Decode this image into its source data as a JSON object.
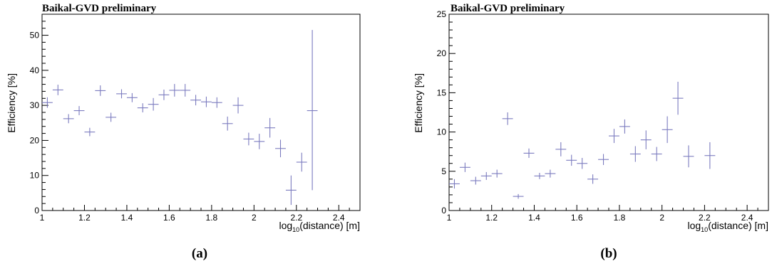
{
  "chart_data": [
    {
      "type": "scatter",
      "panel_label": "(a)",
      "title": "Baikal-GVD preliminary",
      "xlabel_main": "log",
      "xlabel_sub": "10",
      "xlabel_rest": "(distance) [m]",
      "ylabel": "Efficiency [%]",
      "xlim": [
        1.0,
        2.5
      ],
      "ylim": [
        0,
        56
      ],
      "x_ticks": [
        1,
        1.2,
        1.4,
        1.6,
        1.8,
        2,
        2.2,
        2.4
      ],
      "x_tick_labels": [
        "1",
        "1.2",
        "1.4",
        "1.6",
        "1.8",
        "2",
        "2.2",
        "2.4"
      ],
      "y_ticks": [
        0,
        10,
        20,
        30,
        40,
        50
      ],
      "y_tick_labels": [
        "0",
        "10",
        "20",
        "30",
        "40",
        "50"
      ],
      "grid": false,
      "color": "#7b7bbf",
      "x_half_width": 0.025,
      "points": [
        {
          "x": 1.025,
          "y": 30.8,
          "err": 1.5
        },
        {
          "x": 1.075,
          "y": 34.4,
          "err": 1.5
        },
        {
          "x": 1.125,
          "y": 26.2,
          "err": 1.3
        },
        {
          "x": 1.175,
          "y": 28.5,
          "err": 1.3
        },
        {
          "x": 1.225,
          "y": 22.4,
          "err": 1.2
        },
        {
          "x": 1.275,
          "y": 34.2,
          "err": 1.5
        },
        {
          "x": 1.325,
          "y": 26.6,
          "err": 1.3
        },
        {
          "x": 1.375,
          "y": 33.3,
          "err": 1.3
        },
        {
          "x": 1.425,
          "y": 32.2,
          "err": 1.3
        },
        {
          "x": 1.475,
          "y": 29.3,
          "err": 1.3
        },
        {
          "x": 1.525,
          "y": 30.3,
          "err": 1.8
        },
        {
          "x": 1.575,
          "y": 33.0,
          "err": 1.5
        },
        {
          "x": 1.625,
          "y": 34.3,
          "err": 1.8
        },
        {
          "x": 1.675,
          "y": 34.3,
          "err": 1.8
        },
        {
          "x": 1.725,
          "y": 31.5,
          "err": 1.5
        },
        {
          "x": 1.775,
          "y": 31.0,
          "err": 1.5
        },
        {
          "x": 1.825,
          "y": 30.8,
          "err": 1.5
        },
        {
          "x": 1.875,
          "y": 24.8,
          "err": 2.0
        },
        {
          "x": 1.925,
          "y": 30.0,
          "err": 2.3
        },
        {
          "x": 1.975,
          "y": 20.4,
          "err": 1.8
        },
        {
          "x": 2.025,
          "y": 19.7,
          "err": 2.2
        },
        {
          "x": 2.075,
          "y": 23.6,
          "err": 2.8
        },
        {
          "x": 2.125,
          "y": 17.7,
          "err": 2.5
        },
        {
          "x": 2.175,
          "y": 5.8,
          "err": 4.2
        },
        {
          "x": 2.225,
          "y": 13.8,
          "err": 2.7
        },
        {
          "x": 2.275,
          "y": 28.5,
          "err_lo": 22.7,
          "err_hi": 23.0
        }
      ]
    },
    {
      "type": "scatter",
      "panel_label": "(b)",
      "title": "Baikal-GVD preliminary",
      "xlabel_main": "log",
      "xlabel_sub": "10",
      "xlabel_rest": "(distance) [m]",
      "ylabel": "Efficiency [%]",
      "xlim": [
        1.0,
        2.5
      ],
      "ylim": [
        0,
        25
      ],
      "x_ticks": [
        1,
        1.2,
        1.4,
        1.6,
        1.8,
        2,
        2.2,
        2.4
      ],
      "x_tick_labels": [
        "1",
        "1.2",
        "1.4",
        "1.6",
        "1.8",
        "2",
        "2.2",
        "2.4"
      ],
      "y_ticks": [
        0,
        5,
        10,
        15,
        20,
        25
      ],
      "y_tick_labels": [
        "0",
        "5",
        "10",
        "15",
        "20",
        "25"
      ],
      "grid": false,
      "color": "#7b7bbf",
      "x_half_width": 0.025,
      "points": [
        {
          "x": 1.025,
          "y": 3.4,
          "err": 0.6
        },
        {
          "x": 1.075,
          "y": 5.5,
          "err": 0.6
        },
        {
          "x": 1.125,
          "y": 3.8,
          "err": 0.5
        },
        {
          "x": 1.175,
          "y": 4.4,
          "err": 0.5
        },
        {
          "x": 1.225,
          "y": 4.7,
          "err": 0.5
        },
        {
          "x": 1.275,
          "y": 11.7,
          "err": 0.8
        },
        {
          "x": 1.325,
          "y": 1.8,
          "err": 0.3
        },
        {
          "x": 1.375,
          "y": 7.3,
          "err": 0.6
        },
        {
          "x": 1.425,
          "y": 4.4,
          "err": 0.4
        },
        {
          "x": 1.475,
          "y": 4.7,
          "err": 0.5
        },
        {
          "x": 1.525,
          "y": 7.8,
          "err": 0.9
        },
        {
          "x": 1.575,
          "y": 6.4,
          "err": 0.7
        },
        {
          "x": 1.625,
          "y": 6.0,
          "err": 0.7
        },
        {
          "x": 1.675,
          "y": 4.0,
          "err": 0.6
        },
        {
          "x": 1.725,
          "y": 6.5,
          "err": 0.7
        },
        {
          "x": 1.775,
          "y": 9.5,
          "err": 0.9
        },
        {
          "x": 1.825,
          "y": 10.7,
          "err": 0.9
        },
        {
          "x": 1.875,
          "y": 7.2,
          "err": 1.0
        },
        {
          "x": 1.925,
          "y": 9.0,
          "err": 1.2
        },
        {
          "x": 1.975,
          "y": 7.2,
          "err": 0.9
        },
        {
          "x": 2.025,
          "y": 10.3,
          "err": 1.7
        },
        {
          "x": 2.075,
          "y": 14.3,
          "err": 2.1
        },
        {
          "x": 2.125,
          "y": 6.9,
          "err": 1.4
        },
        {
          "x": 2.225,
          "y": 7.0,
          "err": 1.7
        }
      ]
    }
  ]
}
